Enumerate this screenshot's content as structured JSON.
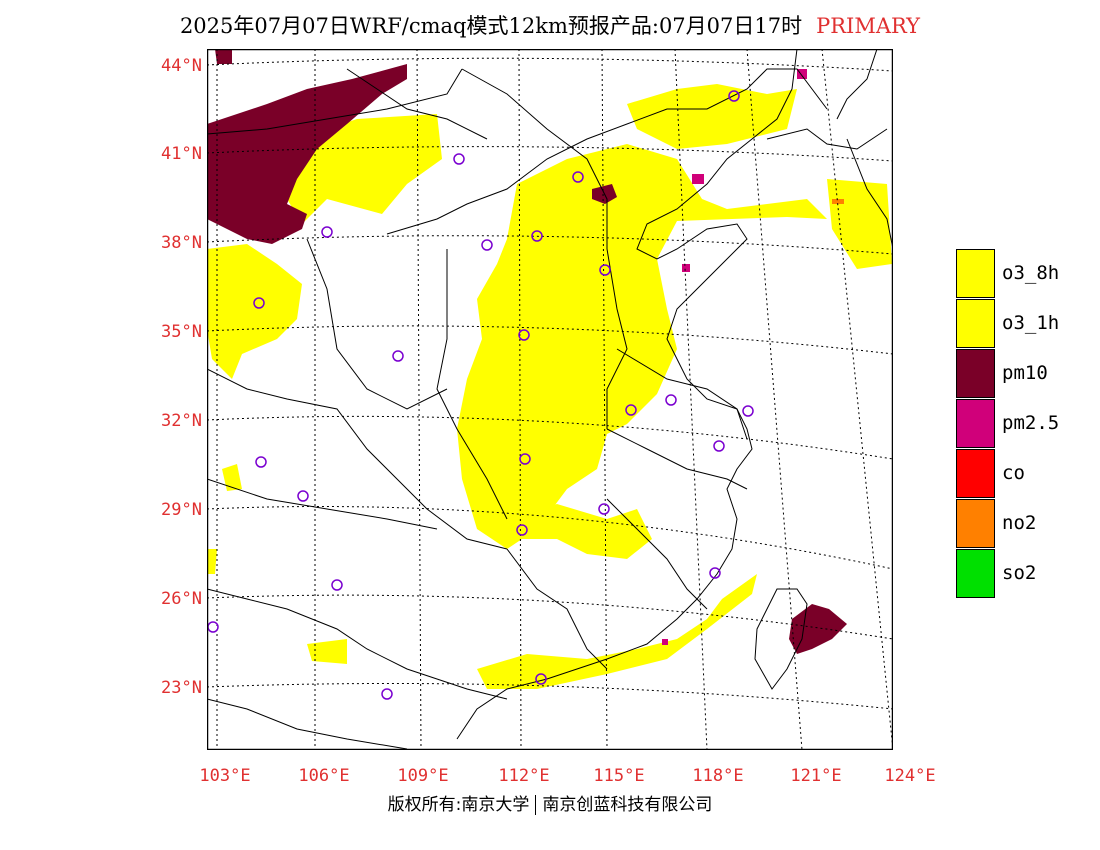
{
  "title": {
    "main": "2025年07月07日WRF/cmaq模式12km预报产品:07月07日17时",
    "tag": "PRIMARY"
  },
  "lat_labels": [
    "44°N",
    "41°N",
    "38°N",
    "35°N",
    "32°N",
    "29°N",
    "26°N",
    "23°N"
  ],
  "lon_labels": [
    "103°E",
    "106°E",
    "109°E",
    "112°E",
    "115°E",
    "118°E",
    "121°E",
    "124°E"
  ],
  "legend": [
    {
      "label": "o3_8h",
      "color": "#ffff00"
    },
    {
      "label": "o3_1h",
      "color": "#ffff00"
    },
    {
      "label": "pm10",
      "color": "#7a0028"
    },
    {
      "label": "pm2.5",
      "color": "#d0007a"
    },
    {
      "label": "co",
      "color": "#ff0000"
    },
    {
      "label": "no2",
      "color": "#ff8000"
    },
    {
      "label": "so2",
      "color": "#00e000"
    }
  ],
  "copyright": {
    "left": "版权所有:南京大学",
    "right": "南京创蓝科技有限公司"
  }
}
